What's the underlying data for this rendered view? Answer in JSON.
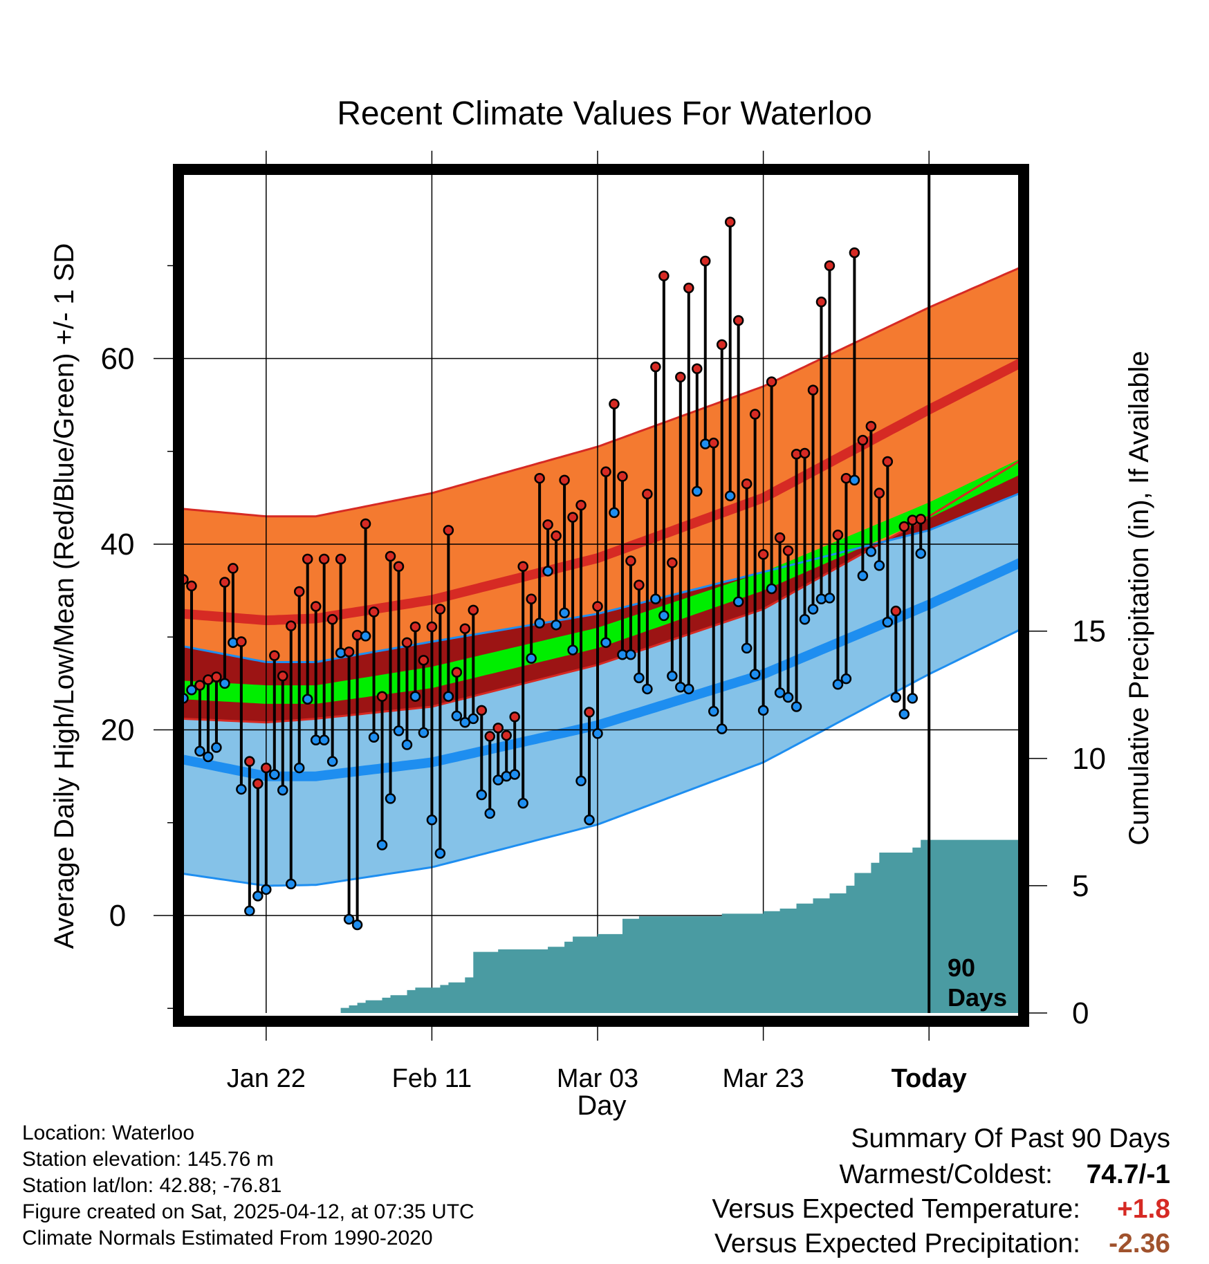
{
  "chart_data": {
    "type": "line",
    "title": "Recent Climate Values For Waterloo",
    "xlabel": "Day",
    "ylabel_left": "Average Daily High/Low/Mean (Red/Blue/Green) +/- 1 SD",
    "ylabel_right": "Cumulative Precipitation (in), If Available",
    "ylim": [
      -10.5,
      80
    ],
    "y2lim": [
      0,
      33
    ],
    "xlim": [
      0,
      101
    ],
    "yticks": [
      0,
      20,
      40,
      60
    ],
    "y2ticks": [
      0,
      5,
      10,
      15
    ],
    "x_tick_positions": [
      10,
      30,
      50,
      70,
      90
    ],
    "x_tick_labels": [
      "Jan 22",
      "Feb 11",
      "Mar 03",
      "Mar 23",
      "Today"
    ],
    "today_index": 90,
    "window_label": [
      "90",
      "Days"
    ],
    "normals": {
      "x": [
        0,
        10,
        16,
        30,
        50,
        70,
        90,
        101
      ],
      "high_mean": [
        32.5,
        31.8,
        32.0,
        34.0,
        38.5,
        45.0,
        54.5,
        59.5
      ],
      "high_upper": [
        43.8,
        43.0,
        43.0,
        45.5,
        50.5,
        57.0,
        65.5,
        69.8
      ],
      "high_lower": [
        21.2,
        20.8,
        21.2,
        22.5,
        27.0,
        33.0,
        43.0,
        49.0
      ],
      "low_mean": [
        16.8,
        15.0,
        15.0,
        16.5,
        20.5,
        26.0,
        33.5,
        38.0
      ],
      "low_upper": [
        29.0,
        27.3,
        27.3,
        29.5,
        32.5,
        37.0,
        41.5,
        45.5
      ],
      "low_lower": [
        4.5,
        3.2,
        3.3,
        5.2,
        9.8,
        16.5,
        26.0,
        30.8
      ],
      "mean_upper": [
        25.3,
        24.8,
        24.8,
        26.8,
        31.0,
        37.0,
        44.5,
        49.2
      ],
      "mean_lower": [
        23.3,
        22.8,
        22.8,
        24.5,
        28.8,
        35.0,
        42.8,
        47.5
      ]
    },
    "series": [
      {
        "name": "Daily High",
        "values": [
          36.2,
          35.5,
          24.8,
          25.4,
          25.7,
          35.9,
          37.4,
          29.5,
          16.6,
          14.2,
          15.9,
          28.0,
          25.8,
          31.2,
          34.9,
          38.4,
          33.3,
          38.4,
          31.9,
          38.4,
          28.4,
          30.2,
          42.2,
          32.7,
          23.6,
          38.7,
          37.6,
          29.4,
          31.1,
          27.5,
          31.1,
          33.0,
          41.5,
          26.2,
          30.9,
          32.9,
          22.1,
          19.3,
          20.2,
          19.4,
          21.4,
          37.6,
          34.1,
          47.1,
          42.1,
          40.9,
          46.9,
          42.9,
          44.2,
          21.9,
          33.3,
          47.8,
          55.1,
          47.3,
          38.2,
          35.6,
          45.4,
          59.1,
          68.9,
          38.0,
          58.0,
          67.6,
          58.9,
          70.5,
          50.9,
          61.5,
          74.7,
          64.1,
          46.5,
          54.0,
          38.9,
          57.5,
          40.7,
          39.3,
          49.7,
          49.8,
          56.6,
          66.1,
          70.0,
          41.0,
          47.1,
          71.4,
          51.2,
          52.7,
          45.5,
          48.9,
          32.8,
          41.9,
          42.6,
          42.7
        ]
      },
      {
        "name": "Daily Low",
        "values": [
          23.4,
          24.3,
          17.7,
          17.1,
          18.1,
          25.0,
          29.4,
          13.6,
          0.5,
          2.1,
          2.8,
          15.2,
          13.5,
          3.4,
          15.9,
          23.3,
          18.9,
          18.9,
          16.6,
          28.3,
          -0.4,
          -1.0,
          30.1,
          19.2,
          7.6,
          12.6,
          19.9,
          18.4,
          23.6,
          19.7,
          10.3,
          6.7,
          23.6,
          21.5,
          20.8,
          21.2,
          13.0,
          11.0,
          14.6,
          15.0,
          15.2,
          12.1,
          27.7,
          31.5,
          37.1,
          31.3,
          32.6,
          28.6,
          14.5,
          10.3,
          19.6,
          29.4,
          43.4,
          28.1,
          28.1,
          25.6,
          24.4,
          34.1,
          32.3,
          25.8,
          24.6,
          24.4,
          45.7,
          50.8,
          22.0,
          20.1,
          45.2,
          33.8,
          28.8,
          26.0,
          22.1,
          35.2,
          24.0,
          23.5,
          22.5,
          31.9,
          33.0,
          34.1,
          34.2,
          24.9,
          25.5,
          46.9,
          36.6,
          39.2,
          37.7,
          31.6,
          23.5,
          21.7,
          23.4,
          39.0
        ]
      },
      {
        "name": "Cumulative Precipitation",
        "points": [
          [
            0,
            0
          ],
          [
            18,
            0
          ],
          [
            19,
            0.2
          ],
          [
            20,
            0.3
          ],
          [
            21,
            0.4
          ],
          [
            22,
            0.5
          ],
          [
            24,
            0.6
          ],
          [
            25,
            0.7
          ],
          [
            26,
            0.7
          ],
          [
            27,
            0.9
          ],
          [
            28,
            1.0
          ],
          [
            30,
            1.0
          ],
          [
            31,
            1.1
          ],
          [
            32,
            1.2
          ],
          [
            33,
            1.2
          ],
          [
            34,
            1.4
          ],
          [
            35,
            2.4
          ],
          [
            38,
            2.5
          ],
          [
            42,
            2.5
          ],
          [
            44,
            2.6
          ],
          [
            45,
            2.6
          ],
          [
            46,
            2.8
          ],
          [
            47,
            3.0
          ],
          [
            48,
            3.0
          ],
          [
            50,
            3.1
          ],
          [
            52,
            3.1
          ],
          [
            53,
            3.7
          ],
          [
            55,
            3.8
          ],
          [
            62,
            3.8
          ],
          [
            65,
            3.9
          ],
          [
            70,
            4.0
          ],
          [
            72,
            4.1
          ],
          [
            74,
            4.3
          ],
          [
            76,
            4.5
          ],
          [
            78,
            4.7
          ],
          [
            80,
            5.0
          ],
          [
            81,
            5.5
          ],
          [
            83,
            5.9
          ],
          [
            84,
            6.3
          ],
          [
            87,
            6.3
          ],
          [
            88,
            6.5
          ],
          [
            89,
            6.8
          ],
          [
            90,
            6.8
          ],
          [
            101,
            6.8
          ]
        ]
      }
    ]
  },
  "footer": {
    "location": "Location: Waterloo",
    "elevation": "Station elevation: 145.76 m",
    "latlon": "Station lat/lon: 42.88; -76.81",
    "created": "Figure created on Sat, 2025-04-12, at 07:35 UTC",
    "normals_source": "Climate Normals Estimated From 1990-2020"
  },
  "summary": {
    "title": "Summary Of Past 90 Days",
    "warmest_coldest_label": "Warmest/Coldest:",
    "warmest_coldest_value": "74.7/-1",
    "temp_label": "Versus Expected Temperature:",
    "temp_value": "+1.8",
    "precip_label": "Versus Expected Precipitation:",
    "precip_value": "-2.36"
  },
  "colors": {
    "high_band": "#f47a30",
    "high_band_edge": "#d62a24",
    "high_mean": "#d62a24",
    "low_band": "#85c2e8",
    "low_band_edge": "#1e8ef0",
    "low_mean": "#1e8ef0",
    "overlap_band": "#9c1414",
    "mean_band": "#00ee00",
    "precip_fill": "#4a9ba2",
    "high_marker": "#d62a24",
    "low_marker": "#1e8ef0",
    "temp_delta": "#d62a24",
    "precip_delta": "#a0522d"
  }
}
